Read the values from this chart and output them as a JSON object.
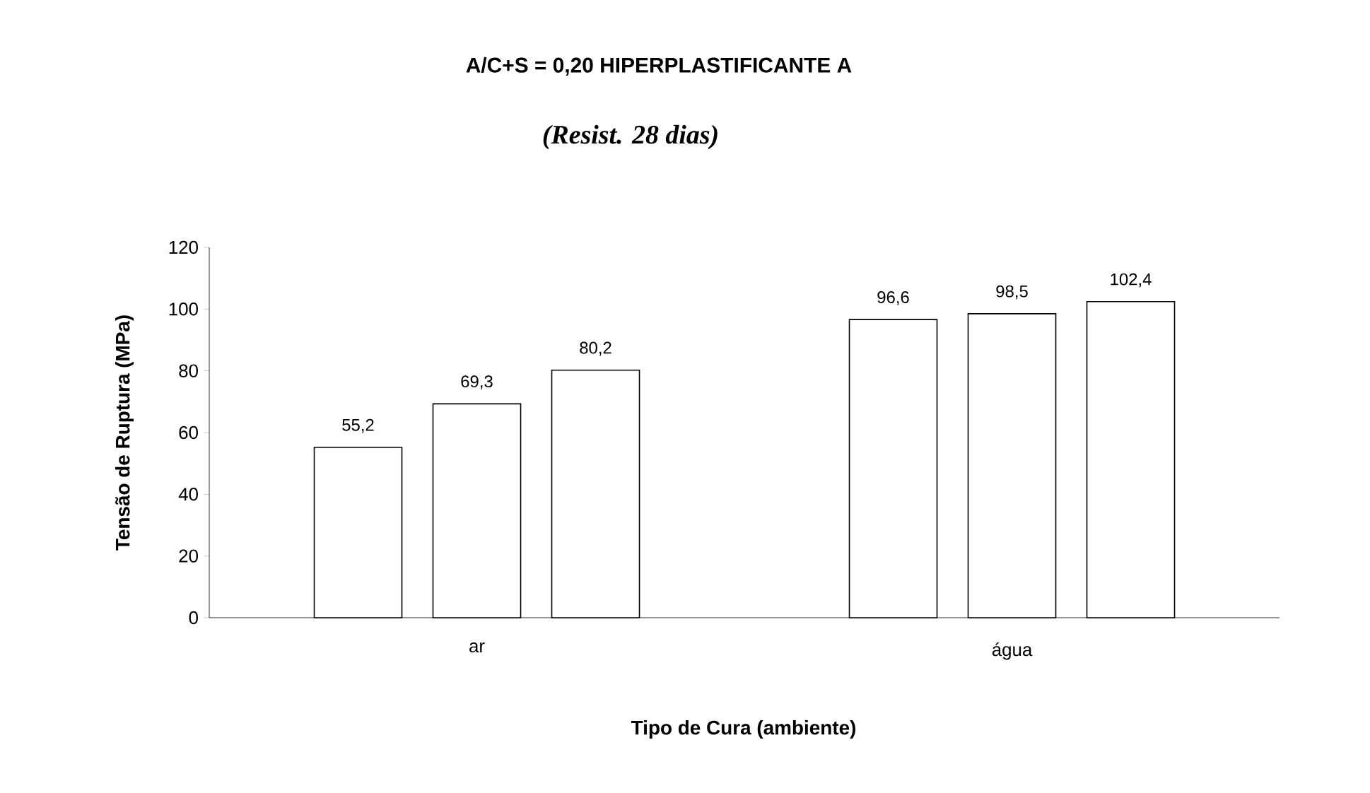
{
  "chart_data": {
    "type": "bar",
    "title": "A/C+S = 0,20     HIPERPLASTIFICANTE A",
    "subtitle": "(Resist. 28 dias)",
    "xlabel": "Tipo de Cura (ambiente)",
    "ylabel": "Tensão de Ruptura (MPa)",
    "categories": [
      "ar",
      "água"
    ],
    "series": [
      {
        "color": "#ffffff",
        "values": [
          55.2,
          96.6
        ],
        "value_labels": [
          "55,2",
          "96,6"
        ]
      },
      {
        "color": "#ffffff",
        "values": [
          69.3,
          98.5
        ],
        "value_labels": [
          "69,3",
          "98,5"
        ]
      },
      {
        "color": "#ffffff",
        "values": [
          80.2,
          102.4
        ],
        "value_labels": [
          "80,2",
          "102,4"
        ]
      }
    ],
    "ylim": [
      0,
      120
    ],
    "yticks": [
      0,
      20,
      40,
      60,
      80,
      100,
      120
    ],
    "grid": false
  }
}
